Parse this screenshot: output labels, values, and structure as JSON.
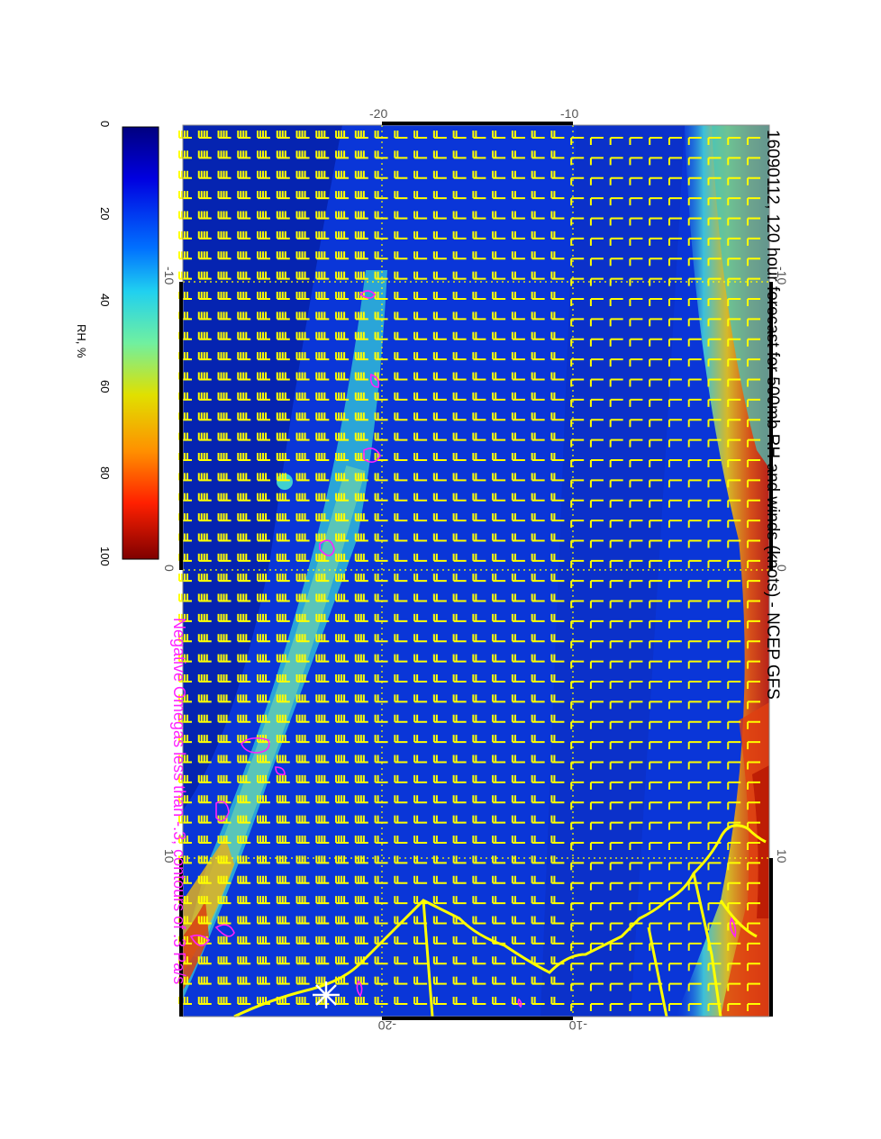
{
  "title": "16090112, 120 hour forecast for 500mb RH and winds (knots) - NCEP GFS",
  "note": "Negative Omegas less than -.3, contours of .3 Pa/s",
  "colorbar": {
    "label": "RH, %",
    "ticks": [
      "0",
      "20",
      "40",
      "60",
      "80",
      "100"
    ],
    "range": [
      0,
      100
    ],
    "colors": [
      "#00007f",
      "#0000ff",
      "#00c0ff",
      "#40ffc0",
      "#c0ff40",
      "#ffc000",
      "#ff2000",
      "#7f0000"
    ]
  },
  "axes": {
    "top_labels": [
      "-20",
      "-10"
    ],
    "bottom_labels": [
      "-20",
      "-10"
    ],
    "left_labels": [
      "-10",
      "0",
      "10"
    ],
    "right_labels": [
      "-10",
      "0",
      "10"
    ]
  },
  "map": {
    "field": "500mb relative humidity",
    "overlays": [
      "wind barbs (knots)",
      "negative omega contours",
      "coastlines"
    ],
    "colors": {
      "ocean_field": "#0a2fd8",
      "dry": "#001aa0",
      "moist_band": "#3fd0d8",
      "wet": "#e6c020",
      "saturated": "#d83010",
      "barb": "#ffff00",
      "omega": "#ff22ff",
      "coast": "#ffff00",
      "grid": "#ffff00"
    }
  }
}
